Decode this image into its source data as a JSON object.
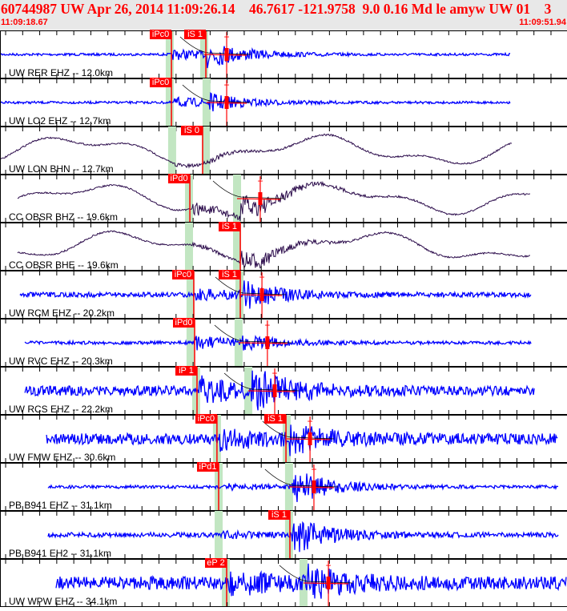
{
  "header": {
    "title": "60744987 UW Apr 26, 2014 11:09:26.14    46.7617 -121.9758  9.0 0.16 Md le amyw UW 01    3",
    "window_start": "11:09:18.67",
    "window_end": "11:09:51.94"
  },
  "colors": {
    "short_period": "#0000ff",
    "broadband": "#2a0a4a",
    "pick": "#ff0000",
    "window": "#c2e6c2",
    "header_bg": "#e8e8e8"
  },
  "traces": [
    {
      "label": "UW RER EHZ -- 12.0km",
      "type": "EHZ",
      "start": "11:09:18.67",
      "end": "11:09:48.65",
      "windows": [
        "11:09:28.63",
        "11:09:30.65"
      ],
      "picks": [
        {
          "label": "iPc0",
          "time": "11:09:28.73"
        },
        {
          "label": "iS 1",
          "time": "11:09:30.75"
        }
      ],
      "coda": "11:09:31.97"
    },
    {
      "label": "UW LO2 EHZ -- 12.7km",
      "type": "EHZ",
      "start": "11:09:18.67",
      "end": "11:09:48.65",
      "windows": [
        "11:09:28.63",
        "11:09:30.79"
      ],
      "picks": [
        {
          "label": "iPc0",
          "time": "11:09:28.73"
        }
      ],
      "coda": "11:09:31.97"
    },
    {
      "label": "UW LON BHN -- 12.7km",
      "type": "BH",
      "start": "11:09:18.67",
      "end": "11:09:48.74",
      "windows": [
        "11:09:28.77",
        "11:09:30.75"
      ],
      "picks": [
        {
          "label": "iS 0",
          "time": "11:09:30.56"
        }
      ],
      "coda": null
    },
    {
      "label": "CC OBSR BHZ -- 19.6km",
      "type": "BH",
      "start": "11:09:19.70",
      "end": "11:09:49.78",
      "windows": [
        "11:09:29.76",
        "11:09:32.58"
      ],
      "picks": [
        {
          "label": "iPd0",
          "time": "11:09:29.81"
        }
      ],
      "coda": "11:09:33.94"
    },
    {
      "label": "CC OBSR BHE -- 19.6km",
      "type": "BH",
      "start": "11:09:19.70",
      "end": "11:09:49.78",
      "windows": [
        "11:09:29.76",
        "11:09:32.58"
      ],
      "picks": [
        {
          "label": "iS 1",
          "time": "11:09:32.77"
        }
      ],
      "coda": null
    },
    {
      "label": "UW RCM EHZ -- 20.2km",
      "type": "EHZ",
      "start": "11:09:19.84",
      "end": "11:09:49.83",
      "windows": [
        "11:09:29.85",
        "11:09:32.72"
      ],
      "picks": [
        {
          "label": "iPc0",
          "time": "11:09:30.04"
        },
        {
          "label": "iS 1",
          "time": "11:09:32.77"
        }
      ],
      "coda": "11:09:34.04"
    },
    {
      "label": "UW RVC EHZ -- 20.3km",
      "type": "EHZ",
      "start": "11:09:20.13",
      "end": "11:09:49.83",
      "windows": [
        "11:09:29.85",
        "11:09:32.67"
      ],
      "picks": [
        {
          "label": "iPd0",
          "time": "11:09:30.09"
        }
      ],
      "coda": "11:09:34.36"
    },
    {
      "label": "UW RCS EHZ -- 22.2km",
      "type": "EHZ",
      "start": "11:09:20.13",
      "end": "11:09:50.06",
      "windows": [
        "11:09:30.18",
        "11:09:33.24"
      ],
      "picks": [
        {
          "label": "iP 1",
          "time": "11:09:30.23"
        }
      ],
      "coda": "11:09:34.79"
    },
    {
      "label": "UW FMW EHZ -- 30.6km",
      "type": "EHZ",
      "start": "11:09:21.40",
      "end": "11:09:51.42",
      "windows": [
        "11:09:31.40",
        "11:09:35.49"
      ],
      "picks": [
        {
          "label": "iPc0",
          "time": "11:09:31.40"
        },
        {
          "label": "iS 1",
          "time": "11:09:35.45"
        }
      ],
      "coda": "11:09:36.86"
    },
    {
      "label": "PB B941 EHZ -- 31.1km",
      "type": "EHZ",
      "start": "11:09:21.49",
      "end": "11:09:51.47",
      "windows": [
        "11:09:31.50",
        "11:09:35.63"
      ],
      "picks": [
        {
          "label": "iPd1",
          "time": "11:09:31.50"
        }
      ],
      "coda": "11:09:37.09"
    },
    {
      "label": "PB B941 EH2 -- 31.1km",
      "type": "EHZ",
      "start": "11:09:21.49",
      "end": "11:09:51.47",
      "windows": [
        "11:09:31.50",
        "11:09:35.63"
      ],
      "picks": [
        {
          "label": "iS 1",
          "time": "11:09:35.68"
        }
      ],
      "coda": null
    },
    {
      "label": "UW WPW EHZ -- 34.1km",
      "type": "EHZ",
      "start": "11:09:21.96",
      "end": "11:09:51.94",
      "windows": [
        "11:09:31.92",
        "11:09:36.48"
      ],
      "picks": [
        {
          "label": "eP 2",
          "time": "11:09:31.97"
        }
      ],
      "coda": "11:09:37.94"
    }
  ]
}
